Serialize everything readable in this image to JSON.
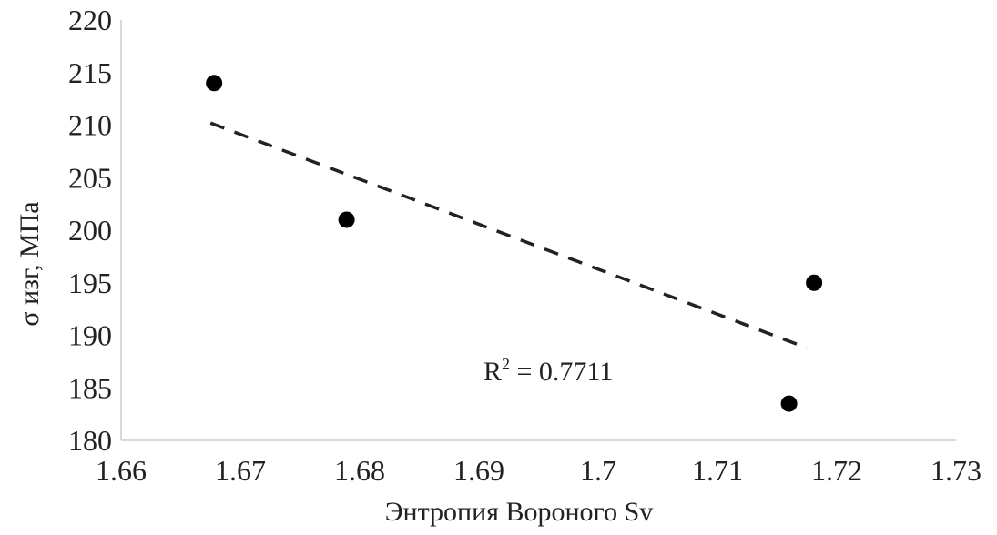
{
  "chart_data": {
    "type": "scatter",
    "title": "",
    "xlabel": "Энтропия Вороного Sv",
    "ylabel": "σ изг, МПа",
    "xlim": [
      1.66,
      1.73
    ],
    "ylim": [
      180,
      220
    ],
    "x_ticks": [
      "1.66",
      "1.67",
      "1.68",
      "1.69",
      "1.7",
      "1.71",
      "1.72",
      "1.73"
    ],
    "y_ticks": [
      "180",
      "185",
      "190",
      "195",
      "200",
      "205",
      "210",
      "215",
      "220"
    ],
    "grid": false,
    "legend": "none",
    "series": [
      {
        "points": [
          {
            "x": 1.6678,
            "y": 214.0
          },
          {
            "x": 1.6789,
            "y": 201.0
          },
          {
            "x": 1.716,
            "y": 183.5
          },
          {
            "x": 1.7181,
            "y": 195.0
          }
        ],
        "color": "#000000"
      }
    ],
    "trendline": {
      "type": "linear",
      "style": "dashed",
      "color": "#222222",
      "x": [
        1.6675,
        1.7175
      ],
      "y": [
        210.2,
        188.8
      ],
      "annotation": {
        "R": "R",
        "sup": "2",
        "rest": " = 0.7711"
      }
    },
    "colors": {
      "axis": "#d9d9d9",
      "text": "#222222",
      "point": "#000000"
    }
  }
}
